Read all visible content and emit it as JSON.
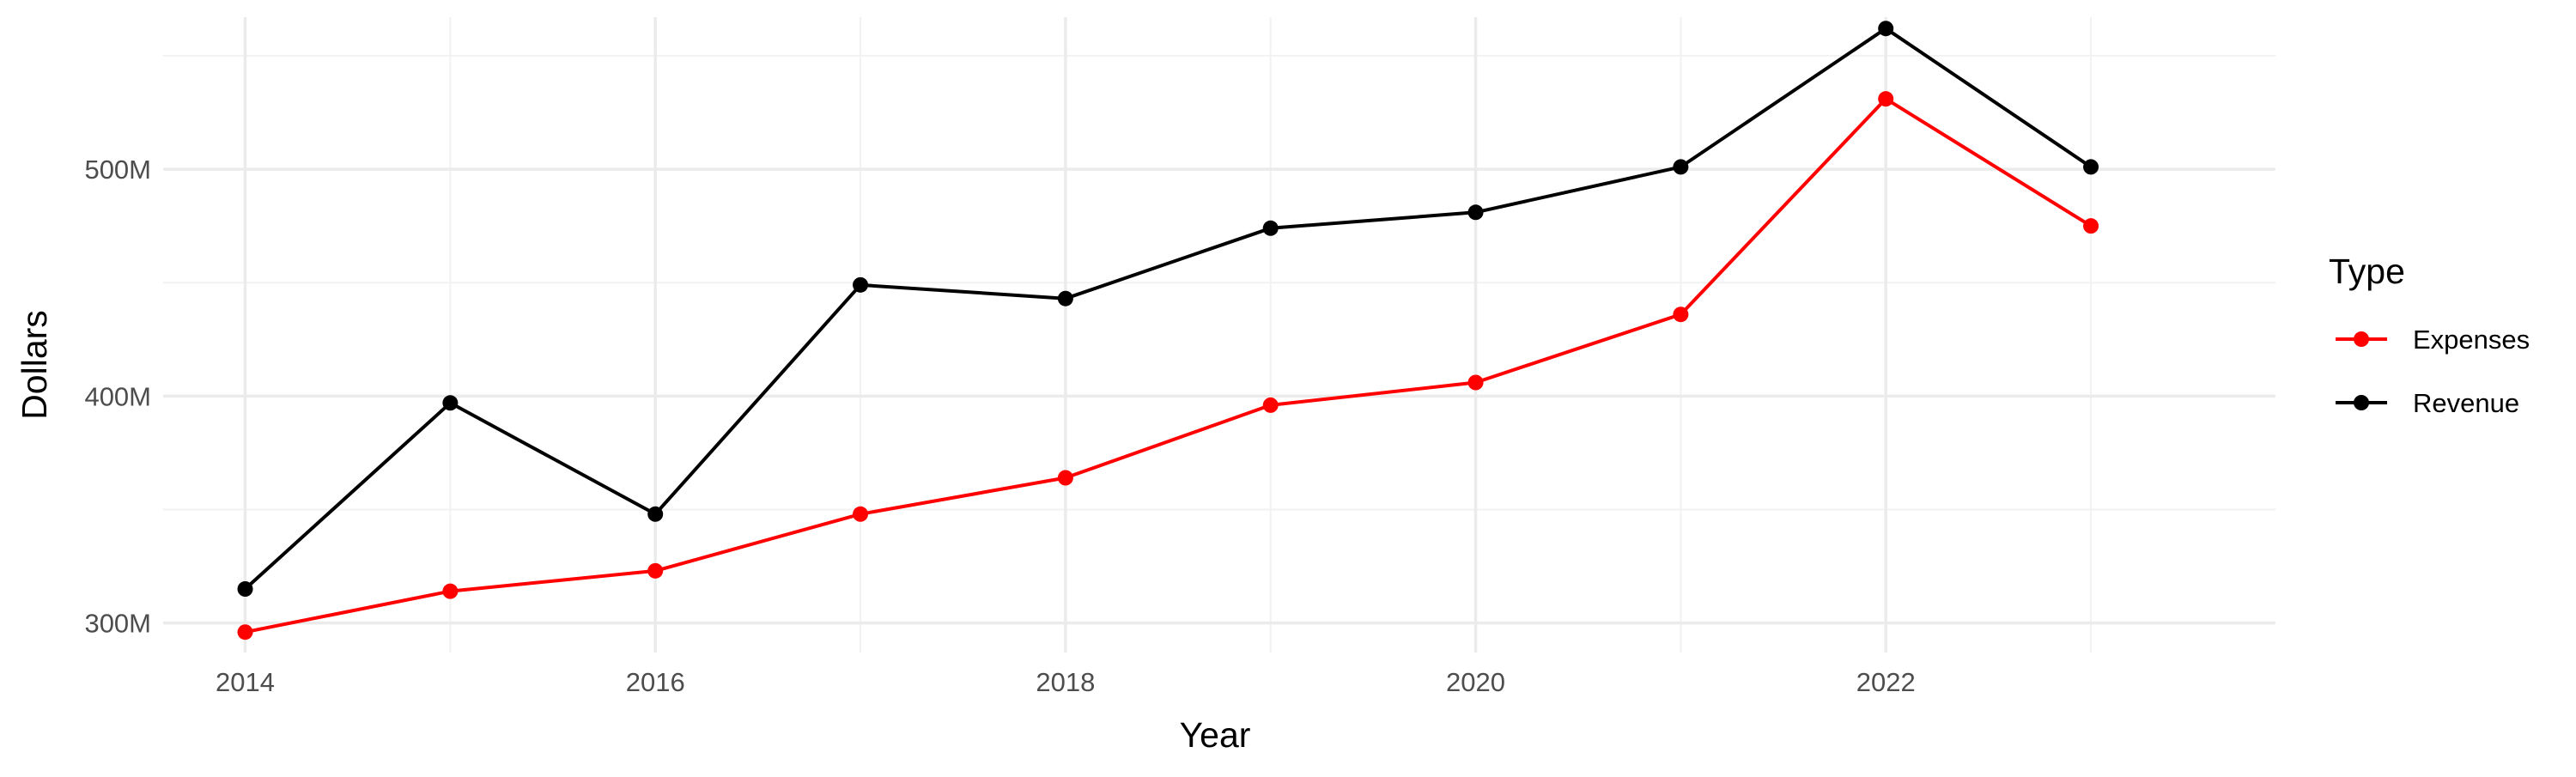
{
  "chart_data": {
    "type": "line",
    "title": "",
    "xlabel": "Year",
    "ylabel": "Dollars",
    "x": [
      2014,
      2015,
      2016,
      2017,
      2018,
      2019,
      2020,
      2021,
      2022,
      2023
    ],
    "x_ticks": [
      2014,
      2016,
      2018,
      2020,
      2022
    ],
    "y_ticks": [
      300000000,
      400000000,
      500000000
    ],
    "y_tick_labels": [
      "300M",
      "400M",
      "500M"
    ],
    "xlim": [
      2013.6,
      2023.9
    ],
    "ylim": [
      287000000,
      567000000
    ],
    "grid": true,
    "legend": {
      "title": "Type",
      "position": "right"
    },
    "series": [
      {
        "name": "Expenses",
        "color": "#ff0000",
        "values": [
          296000000,
          314000000,
          323000000,
          348000000,
          364000000,
          396000000,
          406000000,
          436000000,
          531000000,
          475000000
        ]
      },
      {
        "name": "Revenue",
        "color": "#000000",
        "values": [
          315000000,
          397000000,
          348000000,
          449000000,
          443000000,
          474000000,
          481000000,
          501000000,
          562000000,
          501000000
        ]
      }
    ]
  }
}
